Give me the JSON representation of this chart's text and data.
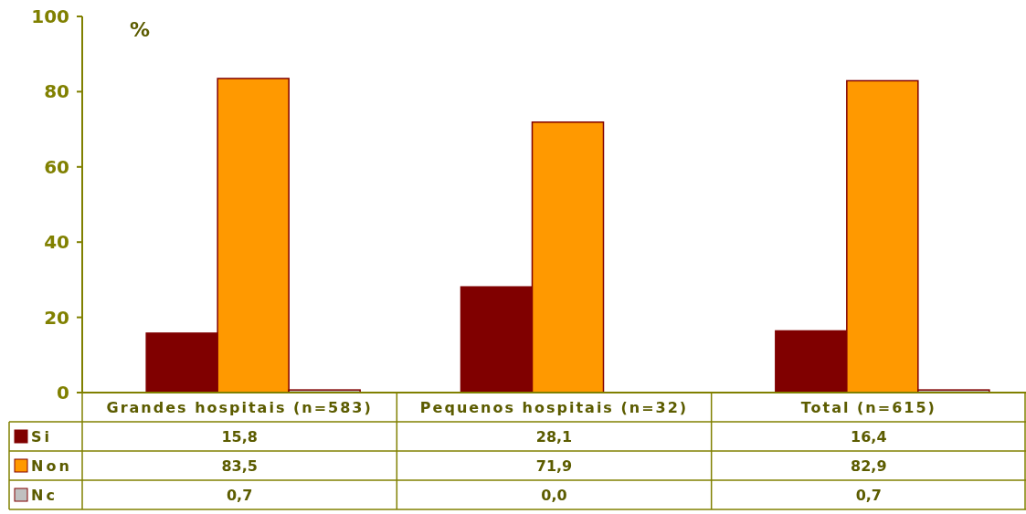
{
  "chart_data": {
    "type": "bar",
    "ylabel": "%",
    "categories": [
      "Grandes hospitais (n=583)",
      "Pequenos hospitais (n=32)",
      "Total (n=615)"
    ],
    "series": [
      {
        "name": "Si",
        "color": "#800000",
        "values": [
          15.8,
          28.1,
          16.4
        ],
        "value_labels": [
          "15,8",
          "28,1",
          "16,4"
        ]
      },
      {
        "name": "Non",
        "color": "#ff9900",
        "values": [
          83.5,
          71.9,
          82.9
        ],
        "value_labels": [
          "83,5",
          "71,9",
          "82,9"
        ]
      },
      {
        "name": "Nc",
        "color": "#c0c0c0",
        "values": [
          0.7,
          0.0,
          0.7
        ],
        "value_labels": [
          "0,7",
          "0,0",
          "0,7"
        ]
      }
    ],
    "ylim": [
      0,
      100
    ],
    "yticks": [
      0,
      20,
      40,
      60,
      80,
      100
    ],
    "grid": false,
    "legend": "bottom"
  }
}
